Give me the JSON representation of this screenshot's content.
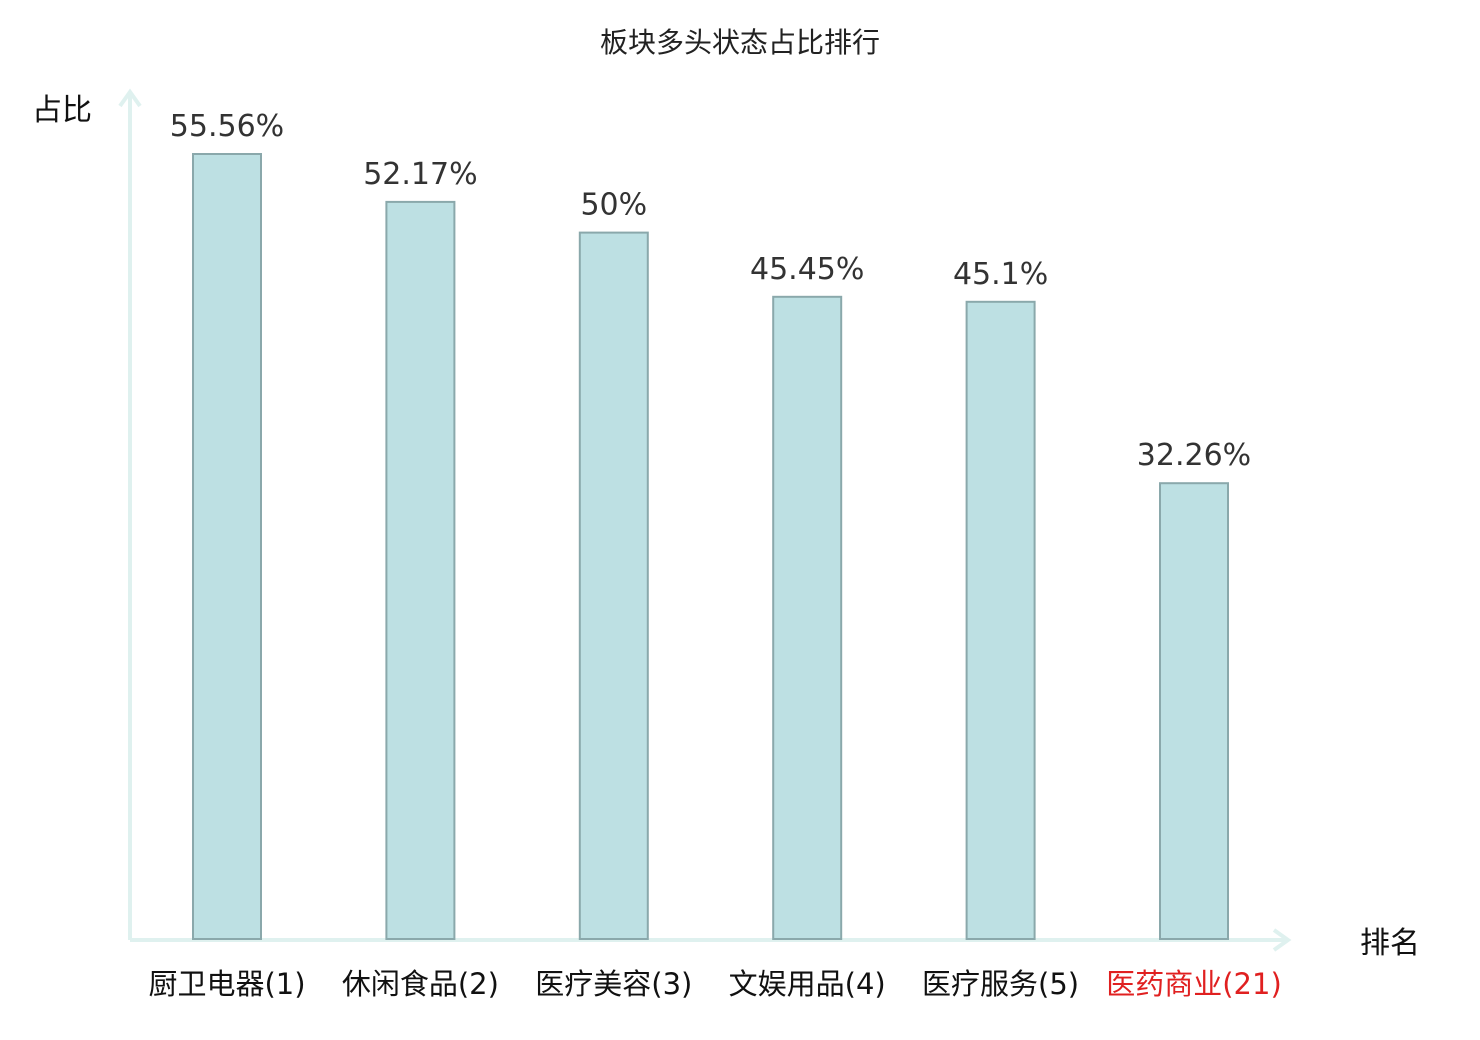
{
  "chart_data": {
    "type": "bar",
    "title": "板块多头状态占比排行",
    "ylabel": "占比",
    "xlabel": "排名",
    "categories": [
      "厨卫电器",
      "休闲食品",
      "医疗美容",
      "文娱用品",
      "医疗服务",
      "医药商业"
    ],
    "ranks": [
      "(1)",
      "(2)",
      "(3)",
      "(4)",
      "(5)",
      "(21)"
    ],
    "values": [
      55.56,
      52.17,
      50,
      45.45,
      45.1,
      32.26
    ],
    "value_labels": [
      "55.56%",
      "52.17%",
      "50%",
      "45.45%",
      "45.1%",
      "32.26%"
    ],
    "highlight_index": 5,
    "ylim": [
      0,
      60
    ],
    "grid": false,
    "legend": "none"
  },
  "colors": {
    "bar_fill": "#bde0e3",
    "bar_stroke": "#8aa8ab",
    "axis": "#dff1ef",
    "category_text": "#111111",
    "highlight_text": "#e02020",
    "value_text": "#333333"
  }
}
